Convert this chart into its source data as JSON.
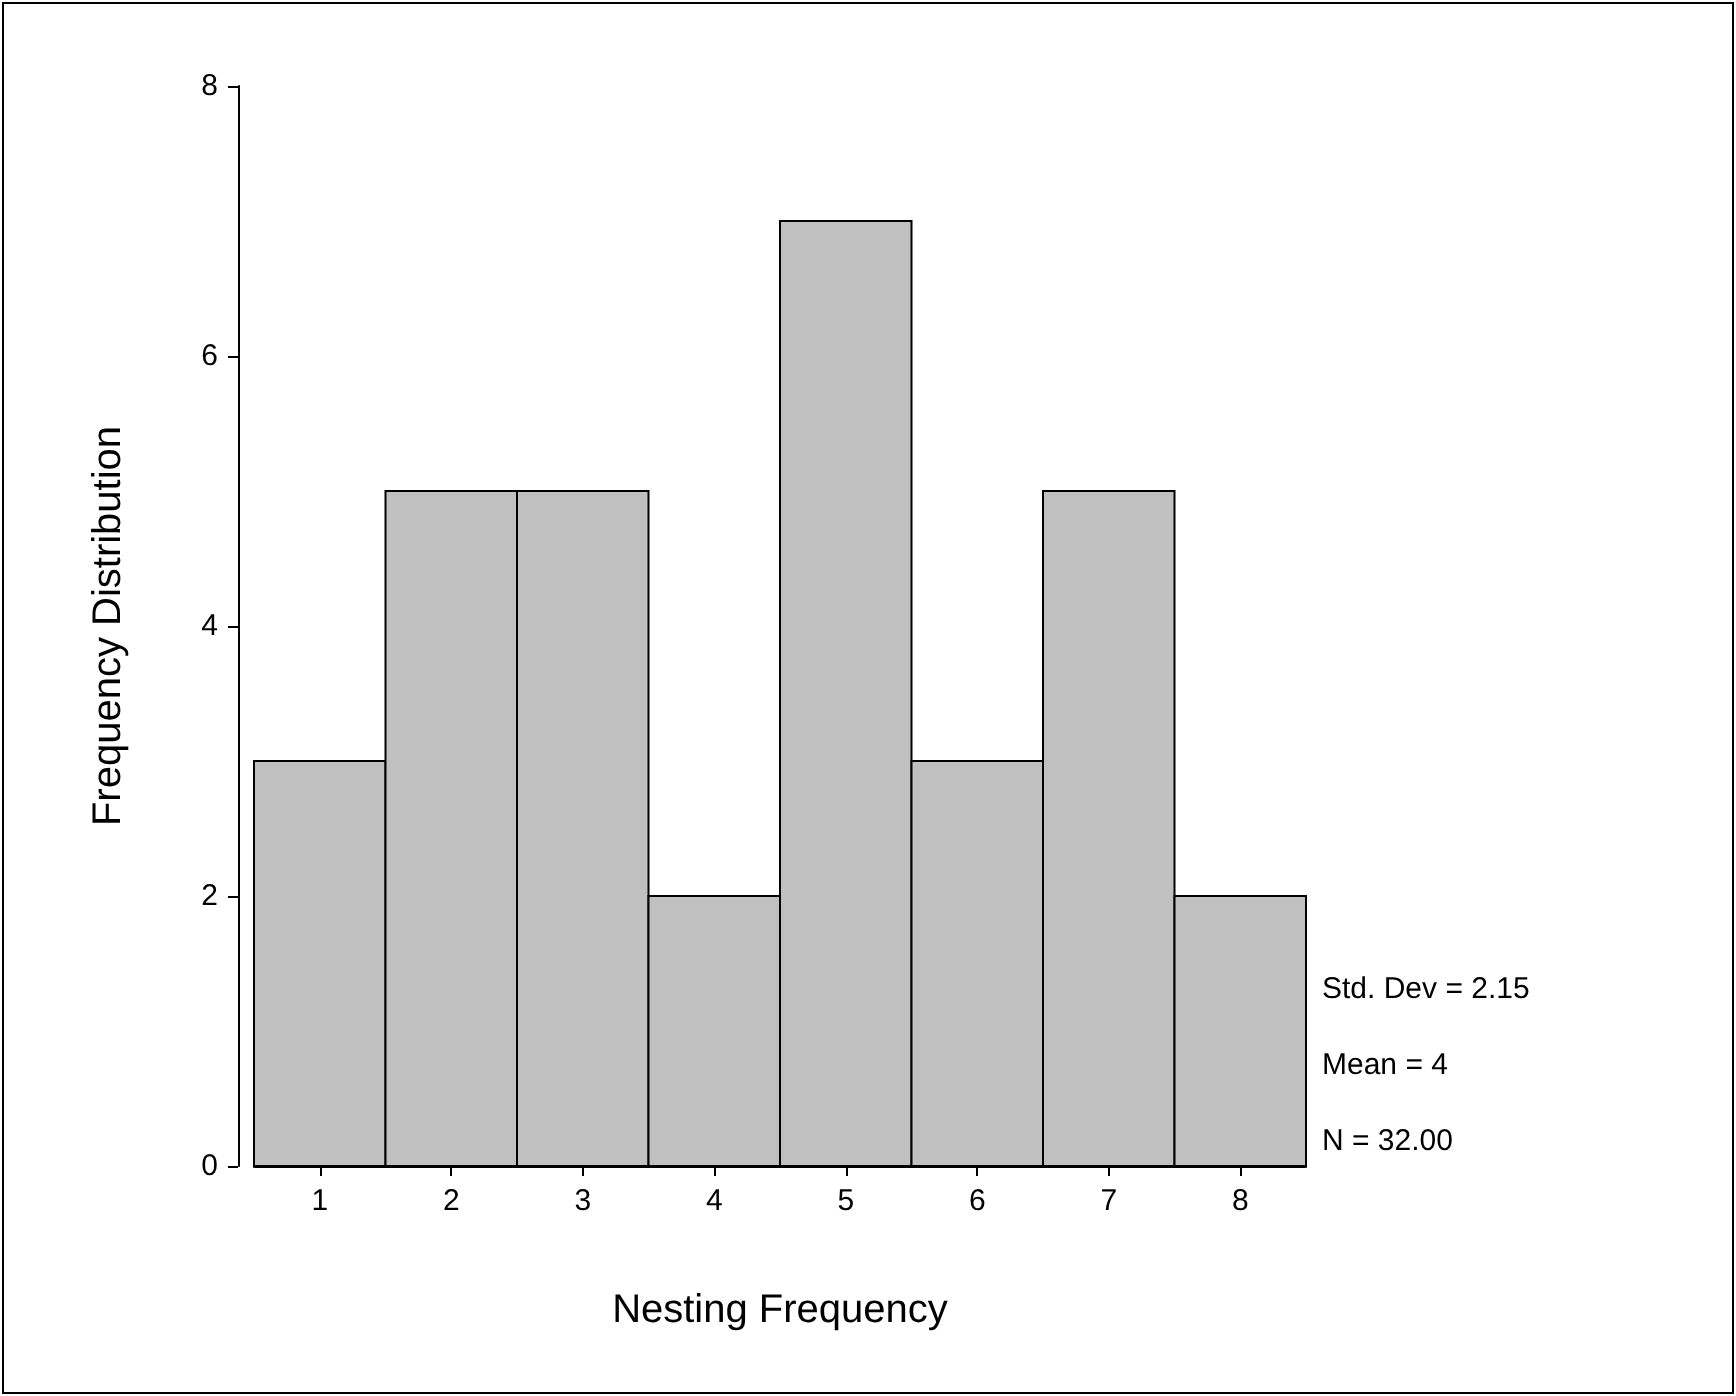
{
  "chart_data": {
    "type": "histogram",
    "xlabel": "Nesting Frequency",
    "ylabel": "Frequency Distribution",
    "bins": [
      0.5,
      1.5,
      2.5,
      3.5,
      4.5,
      5.5,
      6.5,
      7.5,
      8.5
    ],
    "values": [
      3,
      5,
      5,
      2,
      7,
      3,
      5,
      2
    ],
    "color": "#c0c0c0",
    "xlim": [
      0.5,
      8.5
    ],
    "xticks": [
      1,
      2,
      3,
      4,
      5,
      6,
      7,
      8
    ],
    "ylim": [
      0,
      8
    ],
    "yticks": [
      0,
      2,
      4,
      6,
      8
    ],
    "grid": false,
    "annotations": [
      "Std. Dev = 2.15",
      "Mean = 4",
      "N = 32.00"
    ]
  }
}
